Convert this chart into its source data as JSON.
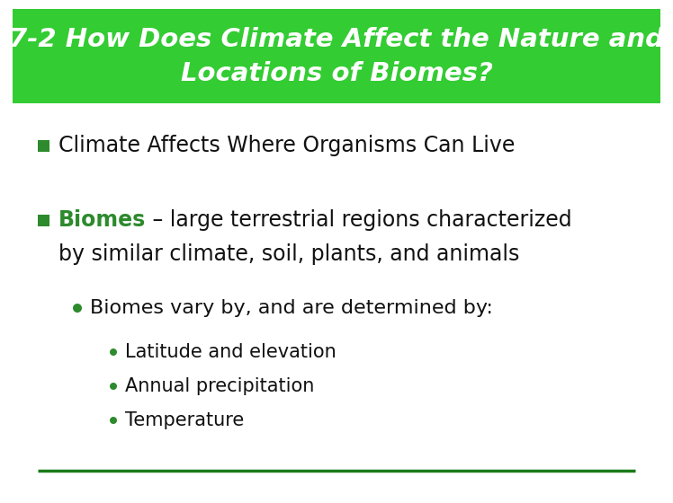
{
  "title_line1": "7-2 How Does Climate Affect the Nature and",
  "title_line2": "Locations of Biomes?",
  "title_bg_color": "#33cc33",
  "title_text_color": "#FFFFFF",
  "title_fontsize": 21,
  "body_bg_color": "#FFFFFF",
  "bullet1_text": "Climate Affects Where Organisms Can Live",
  "bullet1_color": "#111111",
  "bullet1_bullet_color": "#2d8a2d",
  "bullet2_bold": "Biomes",
  "bullet2_rest": " – large terrestrial regions characterized",
  "bullet2_line2": "by similar climate, soil, plants, and animals",
  "bullet2_bold_color": "#2d8a2d",
  "bullet2_color": "#111111",
  "bullet2_bullet_color": "#2d8a2d",
  "sub1_text": "Biomes vary by, and are determined by:",
  "sub1_color": "#111111",
  "sub2_items": [
    "Latitude and elevation",
    "Annual precipitation",
    "Temperature"
  ],
  "sub2_color": "#111111",
  "sub_bullet_color": "#2d8a2d",
  "footer_line_color": "#1a7a1a",
  "bullet_fontsize": 17,
  "sub1_fontsize": 16,
  "sub2_fontsize": 15
}
